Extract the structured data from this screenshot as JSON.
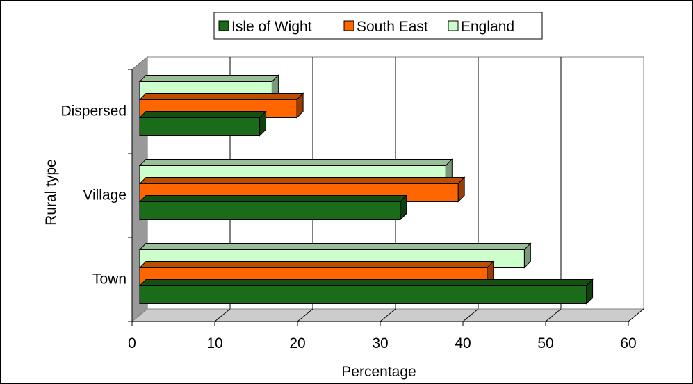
{
  "chart_data": {
    "type": "bar",
    "orientation": "horizontal",
    "three_d": true,
    "categories": [
      "Town",
      "Village",
      "Dispersed"
    ],
    "series": [
      {
        "name": "Isle of Wight",
        "color": "#1a6b1a",
        "values": [
          54.0,
          31.5,
          14.5
        ]
      },
      {
        "name": "South East",
        "color": "#ff6600",
        "values": [
          42.0,
          38.5,
          19.0
        ]
      },
      {
        "name": "England",
        "color": "#ccffcc",
        "values": [
          46.5,
          37.0,
          16.0
        ]
      }
    ],
    "title": "",
    "xlabel": "Percentage",
    "ylabel": "Rural type",
    "xlim": [
      0,
      60
    ],
    "xticks": [
      "0",
      "10",
      "20",
      "30",
      "40",
      "50",
      "60"
    ],
    "grid": true,
    "legend": "top"
  }
}
